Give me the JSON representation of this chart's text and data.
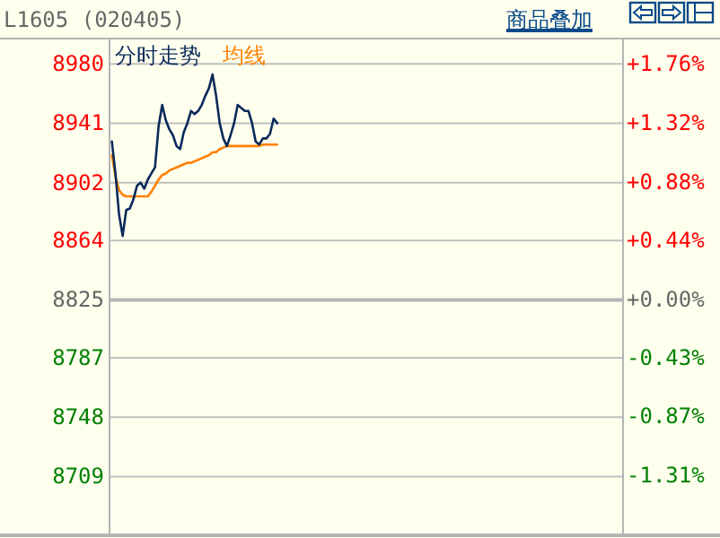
{
  "chart_data": {
    "type": "line",
    "title": "L1605 (020405)",
    "annotations": [
      "商品叠加"
    ],
    "categories": [
      null,
      null,
      null,
      null,
      null,
      null,
      null,
      null,
      null,
      null,
      null,
      null,
      null,
      null,
      null,
      null,
      null,
      null,
      null,
      null,
      null,
      null,
      null,
      null,
      null,
      null,
      null,
      null,
      null,
      null,
      null,
      null,
      null,
      null,
      null,
      null,
      null,
      null,
      null,
      null,
      null,
      null,
      null,
      null,
      null,
      null,
      null,
      null,
      null,
      null,
      null,
      null,
      null,
      null,
      null,
      null,
      null,
      null,
      null,
      null,
      null,
      null,
      null,
      null,
      null,
      null,
      null,
      null,
      null,
      null,
      null,
      null,
      null,
      null,
      null,
      null,
      null,
      null,
      null,
      null,
      null,
      null,
      null,
      null,
      null,
      null,
      null,
      null,
      null,
      null,
      null,
      null,
      null,
      null,
      null,
      null,
      null,
      null,
      null,
      null,
      null,
      null,
      null,
      null,
      null,
      null,
      null,
      null,
      null,
      null,
      null,
      null,
      null,
      null,
      null,
      null,
      null,
      null,
      null,
      null,
      null,
      null,
      null,
      null,
      null,
      null,
      null,
      null,
      null,
      null,
      null,
      null,
      null,
      null,
      null,
      null,
      null,
      null,
      null,
      null,
      null,
      null,
      null
    ],
    "series": [
      {
        "name": "分时走势",
        "color": "#0a2a5a",
        "values": [
          8929,
          8908,
          8881,
          8867,
          8884,
          8885,
          8891,
          8900,
          8902,
          8898,
          8904,
          8908,
          8912,
          8939,
          8953,
          8943,
          8937,
          8933,
          8926,
          8924,
          8935,
          8941,
          8949,
          8947,
          8949,
          8953,
          8959,
          8964,
          8973,
          8959,
          8941,
          8931,
          8926,
          8933,
          8941,
          8953,
          8951,
          8949,
          8949,
          8941,
          8929,
          8927,
          8931,
          8931,
          8934,
          8944,
          8941,
          null,
          null,
          null,
          null,
          null,
          null,
          null,
          null,
          null,
          null,
          null,
          null,
          null,
          null,
          null,
          null,
          null,
          null,
          null,
          null,
          null,
          null,
          null,
          null,
          null,
          null,
          null,
          null,
          null,
          null,
          null,
          null,
          null,
          null,
          null,
          null,
          null,
          null,
          null,
          null,
          null,
          null,
          null,
          null,
          null,
          null,
          null,
          null,
          null,
          null,
          null,
          null,
          null,
          null,
          null,
          null,
          null,
          null,
          null,
          null,
          null,
          null,
          null,
          null,
          null,
          null,
          null,
          null,
          null,
          null,
          null,
          null,
          null,
          null,
          null,
          null,
          null,
          null,
          null,
          null,
          null,
          null,
          null,
          null,
          null,
          null,
          null,
          null,
          null,
          null,
          null,
          null,
          null,
          null,
          null,
          null
        ]
      },
      {
        "name": "均线",
        "color": "#ff8000",
        "values": [
          8920,
          8906,
          8897,
          8894,
          8893,
          8893,
          8893,
          8893,
          8893,
          8893,
          8893,
          8896,
          8900,
          8904,
          8907,
          8908,
          8910,
          8911,
          8912,
          8913,
          8914,
          8915,
          8915,
          8916,
          8917,
          8918,
          8919,
          8920,
          8922,
          8922,
          8924,
          8925,
          8926,
          8926,
          8926,
          8926,
          8926,
          8926,
          8926,
          8926,
          8926,
          8926,
          8927,
          8927,
          8927,
          8927,
          8927,
          null,
          null,
          null,
          null,
          null,
          null,
          null,
          null,
          null,
          null,
          null,
          null,
          null,
          null,
          null,
          null,
          null,
          null,
          null,
          null,
          null,
          null,
          null,
          null,
          null,
          null,
          null,
          null,
          null,
          null,
          null,
          null,
          null,
          null,
          null,
          null,
          null,
          null,
          null,
          null,
          null,
          null,
          null,
          null,
          null,
          null,
          null,
          null,
          null,
          null,
          null,
          null,
          null,
          null,
          null,
          null,
          null,
          null,
          null,
          null,
          null,
          null,
          null,
          null,
          null,
          null,
          null,
          null,
          null,
          null,
          null,
          null,
          null,
          null,
          null,
          null,
          null,
          null,
          null,
          null,
          null,
          null,
          null,
          null,
          null,
          null,
          null,
          null,
          null,
          null,
          null,
          null,
          null,
          null,
          null,
          null
        ]
      }
    ],
    "ylim": [
      8671,
      8996
    ],
    "yticks": [
      8709,
      8748,
      8787,
      8825,
      8864,
      8902,
      8941,
      8980
    ],
    "y2lim": [
      -1.75,
      1.94
    ],
    "y2ticks": [
      {
        "value": -1.31,
        "label": "-1.31%"
      },
      {
        "value": -0.87,
        "label": "-0.87%"
      },
      {
        "value": -0.43,
        "label": "-0.43%"
      },
      {
        "value": 0,
        "label": "+0.00%"
      },
      {
        "value": 0.44,
        "label": "+0.44%"
      },
      {
        "value": 0.88,
        "label": "+0.88%"
      },
      {
        "value": 1.32,
        "label": "+1.32%"
      },
      {
        "value": 1.76,
        "label": "+1.76%"
      }
    ],
    "ref_lines": [
      {
        "axis": "y",
        "value": 8825,
        "color": "#b4b4b4"
      }
    ],
    "grid": "y",
    "legend": "top left",
    "tick_labels": "y"
  }
}
